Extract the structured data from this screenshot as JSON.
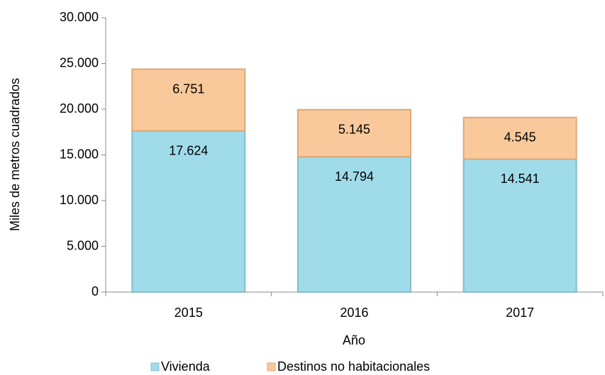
{
  "chart_data": {
    "type": "stacked_bar",
    "categories": [
      "2015",
      "2016",
      "2017"
    ],
    "series": [
      {
        "name": "Vivienda",
        "color": "#a0dbea",
        "values": [
          17624,
          14794,
          14541
        ],
        "value_labels": [
          "17.624",
          "14.794",
          "14.541"
        ]
      },
      {
        "name": "Destinos no habitacionales",
        "color": "#f9c99b",
        "values": [
          6751,
          5145,
          4545
        ],
        "value_labels": [
          "6.751",
          "5.145",
          "4.545"
        ]
      }
    ],
    "ylabel": "Miles de metros cuadrados",
    "xlabel": "Año",
    "ylim": [
      0,
      30000
    ],
    "yticks": [
      0,
      {
        "value": 5000,
        "label": "5.000"
      },
      {
        "value": 10000,
        "label": "10.000"
      },
      {
        "value": 15000,
        "label": "15.000"
      },
      {
        "value": 20000,
        "label": "20.000"
      },
      {
        "value": 25000,
        "label": "25.000"
      },
      {
        "value": 30000,
        "label": "30.000"
      }
    ],
    "legend": "bottom"
  }
}
